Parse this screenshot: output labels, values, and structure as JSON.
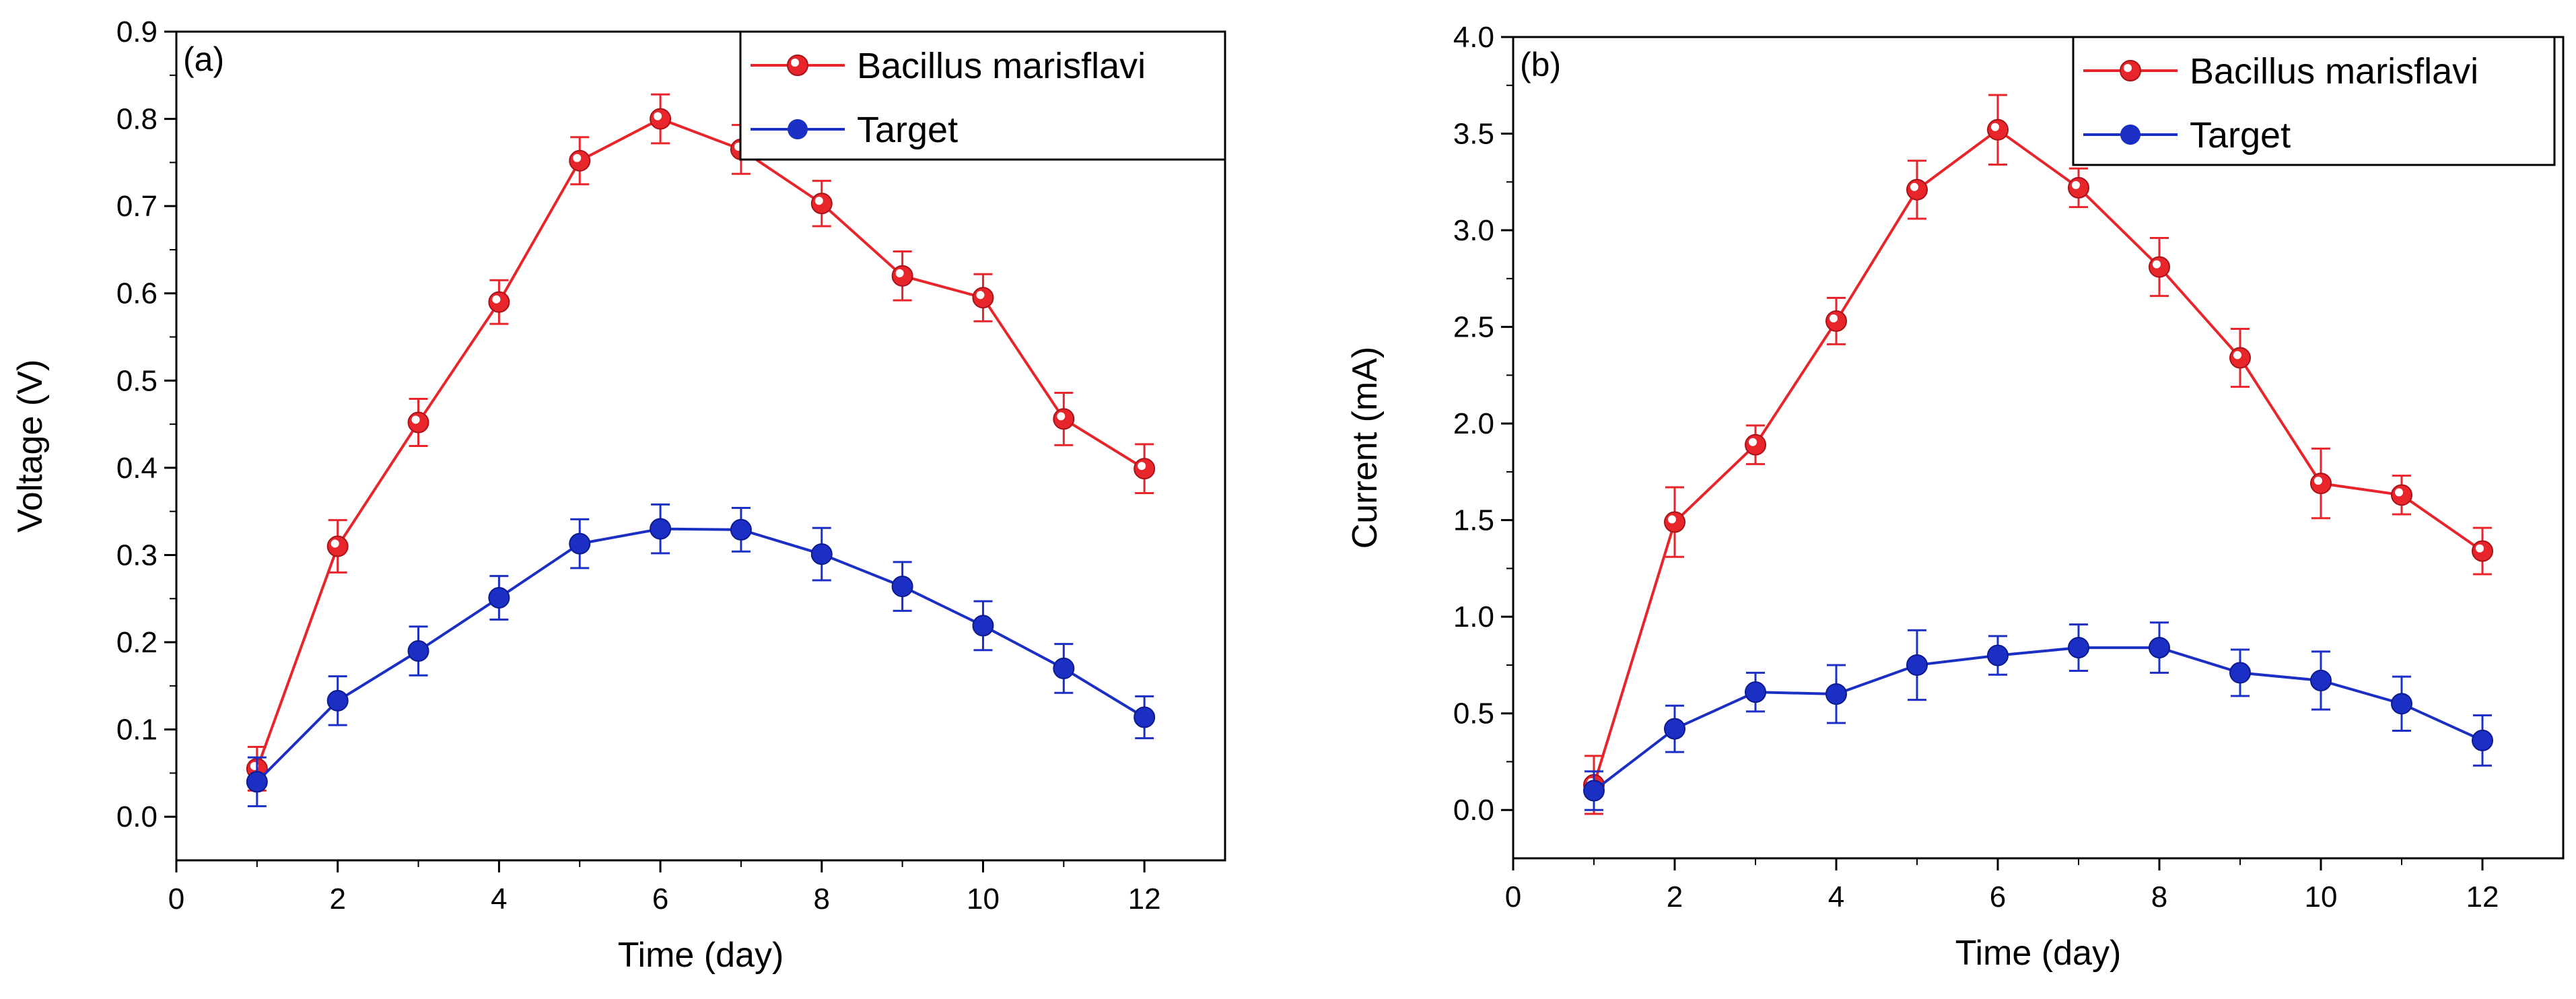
{
  "chart_data": [
    {
      "panel_label": "(a)",
      "type": "line",
      "title": "",
      "xlabel": "Time (day)",
      "ylabel": "Voltage (V)",
      "xlim": [
        0,
        13
      ],
      "ylim": [
        -0.05,
        0.9
      ],
      "xticks": [
        0,
        2,
        4,
        6,
        8,
        10,
        12
      ],
      "xtick_labels": [
        "0",
        "2",
        "4",
        "6",
        "8",
        "10",
        "12"
      ],
      "yticks": [
        0.0,
        0.1,
        0.2,
        0.3,
        0.4,
        0.5,
        0.6,
        0.7,
        0.8,
        0.9
      ],
      "ytick_labels": [
        "0.0",
        "0.1",
        "0.2",
        "0.3",
        "0.4",
        "0.5",
        "0.6",
        "0.7",
        "0.8",
        "0.9"
      ],
      "legend_position": "top-right",
      "x": [
        1,
        2,
        3,
        4,
        5,
        6,
        7,
        8,
        9,
        10,
        11,
        12
      ],
      "series": [
        {
          "name": "Bacillus marisflavi",
          "color": "#e8252b",
          "marker": "open-circle",
          "values": [
            0.055,
            0.31,
            0.452,
            0.59,
            0.752,
            0.8,
            0.765,
            0.703,
            0.62,
            0.595,
            0.456,
            0.399
          ],
          "errors": [
            0.025,
            0.03,
            0.027,
            0.025,
            0.027,
            0.028,
            0.028,
            0.026,
            0.028,
            0.027,
            0.03,
            0.028
          ]
        },
        {
          "name": "Target",
          "color": "#1c2fc4",
          "marker": "filled-circle",
          "values": [
            0.04,
            0.133,
            0.19,
            0.251,
            0.313,
            0.33,
            0.329,
            0.301,
            0.264,
            0.219,
            0.17,
            0.114
          ],
          "errors": [
            0.028,
            0.028,
            0.028,
            0.025,
            0.028,
            0.028,
            0.025,
            0.03,
            0.028,
            0.028,
            0.028,
            0.024
          ]
        }
      ]
    },
    {
      "panel_label": "(b)",
      "type": "line",
      "title": "",
      "xlabel": "Time (day)",
      "ylabel": "Current (mA)",
      "xlim": [
        0,
        13
      ],
      "ylim": [
        -0.25,
        4.0
      ],
      "xticks": [
        0,
        2,
        4,
        6,
        8,
        10,
        12
      ],
      "xtick_labels": [
        "0",
        "2",
        "4",
        "6",
        "8",
        "10",
        "12"
      ],
      "yticks": [
        0.0,
        0.5,
        1.0,
        1.5,
        2.0,
        2.5,
        3.0,
        3.5,
        4.0
      ],
      "ytick_labels": [
        "0.0",
        "0.5",
        "1.0",
        "1.5",
        "2.0",
        "2.5",
        "3.0",
        "3.5",
        "4.0"
      ],
      "legend_position": "top-right",
      "x": [
        1,
        2,
        3,
        4,
        5,
        6,
        7,
        8,
        9,
        10,
        11,
        12
      ],
      "series": [
        {
          "name": "Bacillus marisflavi",
          "color": "#e8252b",
          "marker": "open-circle",
          "values": [
            0.13,
            1.49,
            1.89,
            2.53,
            3.21,
            3.52,
            3.22,
            2.81,
            2.34,
            1.69,
            1.63,
            1.34
          ],
          "errors": [
            0.15,
            0.18,
            0.1,
            0.12,
            0.15,
            0.18,
            0.1,
            0.15,
            0.15,
            0.18,
            0.1,
            0.12
          ]
        },
        {
          "name": "Target",
          "color": "#1c2fc4",
          "marker": "filled-circle",
          "values": [
            0.1,
            0.42,
            0.61,
            0.6,
            0.75,
            0.8,
            0.84,
            0.84,
            0.71,
            0.67,
            0.55,
            0.36
          ],
          "errors": [
            0.1,
            0.12,
            0.1,
            0.15,
            0.18,
            0.1,
            0.12,
            0.13,
            0.12,
            0.15,
            0.14,
            0.13
          ]
        }
      ]
    }
  ]
}
